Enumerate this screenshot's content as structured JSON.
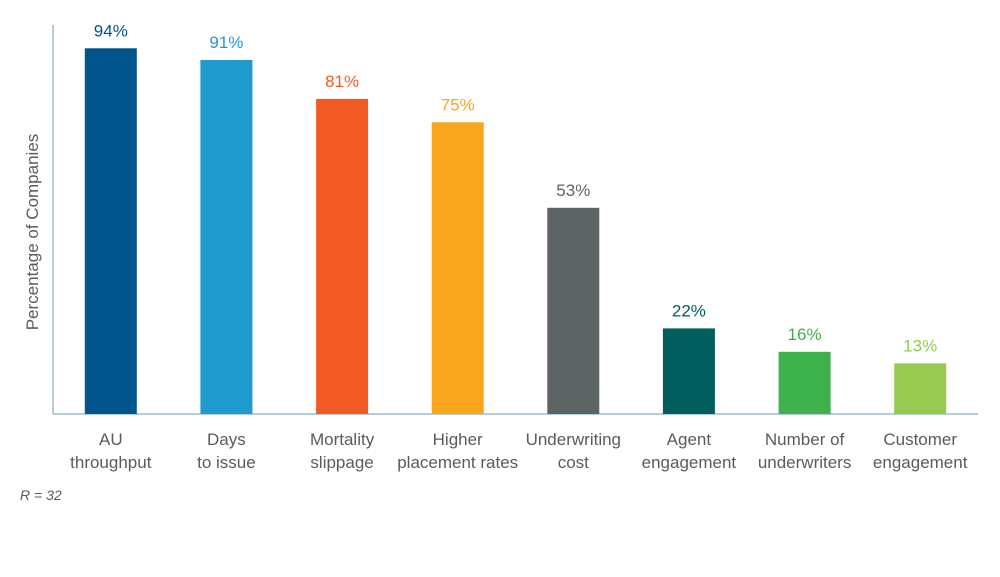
{
  "chart_data": {
    "type": "bar",
    "ylabel": "Percentage of Companies",
    "xlabel": "",
    "ylim": [
      0,
      100
    ],
    "grid": false,
    "categories": [
      [
        "AU",
        "throughput"
      ],
      [
        "Days",
        "to issue"
      ],
      [
        "Mortality",
        "slippage"
      ],
      [
        "Higher",
        "placement rates"
      ],
      [
        "Underwriting",
        "cost"
      ],
      [
        "Agent",
        "engagement"
      ],
      [
        "Number of",
        "underwriters"
      ],
      [
        "Customer",
        "engagement"
      ]
    ],
    "values": [
      94,
      91,
      81,
      75,
      53,
      22,
      16,
      13
    ],
    "value_labels": [
      "94%",
      "91%",
      "81%",
      "75%",
      "53%",
      "22%",
      "16%",
      "13%"
    ],
    "colors": [
      "#00568c",
      "#1f9bd0",
      "#f15a22",
      "#f9a51d",
      "#5d6466",
      "#005e5e",
      "#3db14b",
      "#98ca4f"
    ]
  },
  "footnote": "R = 32"
}
